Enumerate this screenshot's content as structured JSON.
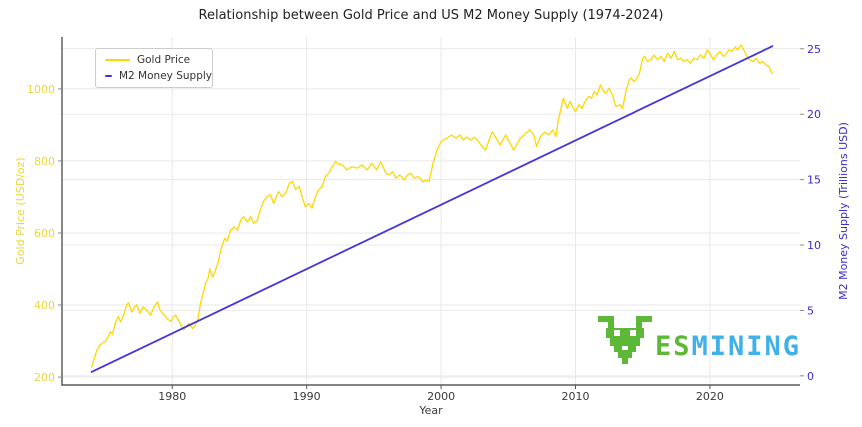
{
  "watermark": {
    "text_es": "ES",
    "text_mining": "MINING"
  },
  "chart_data": {
    "type": "line",
    "title": "Relationship between Gold Price and US M2 Money Supply (1974-2024)",
    "xlabel": "Year",
    "ylabel_left": "Gold Price (USD/oz)",
    "ylabel_right": "M2 Money Supply (Trillions USD)",
    "grid": true,
    "legend_position": "upper left",
    "colors": {
      "gold_line": "#FFD700",
      "gold_text": "#EDD53C",
      "m2_line": "#4634D9",
      "m2_text": "#3A2BCE",
      "grid": "#E9E9E9",
      "spine": "#3A3A3A",
      "tick_text": "#3A3A3A",
      "title_text": "#222222",
      "watermark_green": "#5CB835",
      "watermark_blue": "#41B0E8"
    },
    "axes": {
      "x": {
        "ticks": [
          1980,
          1990,
          2000,
          2010,
          2020
        ],
        "range": [
          1971.8,
          2026.7
        ]
      },
      "y_left": {
        "ticks": [
          200,
          400,
          600,
          800,
          1000
        ],
        "range": [
          178,
          1144
        ]
      },
      "y_right": {
        "ticks": [
          0,
          5,
          10,
          15,
          20,
          25
        ],
        "range": [
          -0.7,
          25.9
        ]
      }
    },
    "series": [
      {
        "name": "Gold Price",
        "axis": "left",
        "color": "#FFD700",
        "width": 1.3,
        "points": [
          [
            1974.0,
            228
          ],
          [
            1974.2,
            252
          ],
          [
            1974.4,
            275
          ],
          [
            1974.6,
            288
          ],
          [
            1974.8,
            294
          ],
          [
            1975.0,
            298
          ],
          [
            1975.2,
            310
          ],
          [
            1975.4,
            326
          ],
          [
            1975.55,
            319
          ],
          [
            1975.8,
            354
          ],
          [
            1976.0,
            368
          ],
          [
            1976.15,
            353
          ],
          [
            1976.4,
            372
          ],
          [
            1976.6,
            400
          ],
          [
            1976.75,
            406
          ],
          [
            1977.0,
            381
          ],
          [
            1977.2,
            395
          ],
          [
            1977.35,
            400
          ],
          [
            1977.6,
            377
          ],
          [
            1977.85,
            395
          ],
          [
            1978.1,
            386
          ],
          [
            1978.4,
            372
          ],
          [
            1978.65,
            395
          ],
          [
            1978.9,
            409
          ],
          [
            1979.1,
            386
          ],
          [
            1979.4,
            372
          ],
          [
            1979.65,
            362
          ],
          [
            1979.9,
            354
          ],
          [
            1980.1,
            368
          ],
          [
            1980.25,
            372
          ],
          [
            1980.5,
            354
          ],
          [
            1980.7,
            340
          ],
          [
            1980.85,
            331
          ],
          [
            1981.1,
            344
          ],
          [
            1981.25,
            349
          ],
          [
            1981.5,
            335
          ],
          [
            1981.7,
            341
          ],
          [
            1981.9,
            360
          ],
          [
            1982.1,
            405
          ],
          [
            1982.3,
            432
          ],
          [
            1982.5,
            462
          ],
          [
            1982.65,
            472
          ],
          [
            1982.8,
            500
          ],
          [
            1983.0,
            478
          ],
          [
            1983.2,
            495
          ],
          [
            1983.4,
            516
          ],
          [
            1983.6,
            552
          ],
          [
            1983.9,
            585
          ],
          [
            1984.1,
            578
          ],
          [
            1984.35,
            608
          ],
          [
            1984.6,
            617
          ],
          [
            1984.85,
            608
          ],
          [
            1985.1,
            636
          ],
          [
            1985.3,
            645
          ],
          [
            1985.6,
            631
          ],
          [
            1985.85,
            645
          ],
          [
            1986.05,
            627
          ],
          [
            1986.3,
            632
          ],
          [
            1986.55,
            664
          ],
          [
            1986.8,
            688
          ],
          [
            1987.05,
            701
          ],
          [
            1987.3,
            706
          ],
          [
            1987.55,
            682
          ],
          [
            1987.9,
            715
          ],
          [
            1988.15,
            701
          ],
          [
            1988.45,
            710
          ],
          [
            1988.7,
            738
          ],
          [
            1988.95,
            743
          ],
          [
            1989.2,
            720
          ],
          [
            1989.45,
            729
          ],
          [
            1989.65,
            701
          ],
          [
            1989.9,
            673
          ],
          [
            1990.15,
            682
          ],
          [
            1990.4,
            669
          ],
          [
            1990.65,
            701
          ],
          [
            1990.9,
            720
          ],
          [
            1991.15,
            729
          ],
          [
            1991.4,
            757
          ],
          [
            1991.65,
            766
          ],
          [
            1991.9,
            784
          ],
          [
            1992.15,
            798
          ],
          [
            1992.4,
            791
          ],
          [
            1992.65,
            789
          ],
          [
            1993.0,
            775
          ],
          [
            1993.35,
            784
          ],
          [
            1993.75,
            780
          ],
          [
            1994.1,
            789
          ],
          [
            1994.5,
            775
          ],
          [
            1994.85,
            793
          ],
          [
            1995.2,
            775
          ],
          [
            1995.5,
            798
          ],
          [
            1995.9,
            766
          ],
          [
            1996.1,
            761
          ],
          [
            1996.4,
            770
          ],
          [
            1996.65,
            752
          ],
          [
            1996.9,
            761
          ],
          [
            1997.1,
            756
          ],
          [
            1997.25,
            747
          ],
          [
            1997.5,
            761
          ],
          [
            1997.75,
            766
          ],
          [
            1998.0,
            752
          ],
          [
            1998.3,
            757
          ],
          [
            1998.65,
            742
          ],
          [
            1998.9,
            747
          ],
          [
            1999.1,
            742
          ],
          [
            1999.4,
            793
          ],
          [
            1999.7,
            830
          ],
          [
            2000.0,
            854
          ],
          [
            2000.4,
            863
          ],
          [
            2000.8,
            872
          ],
          [
            2001.1,
            863
          ],
          [
            2001.4,
            872
          ],
          [
            2001.65,
            858
          ],
          [
            2001.9,
            866
          ],
          [
            2002.2,
            858
          ],
          [
            2002.5,
            866
          ],
          [
            2002.8,
            852
          ],
          [
            2003.0,
            843
          ],
          [
            2003.3,
            830
          ],
          [
            2003.8,
            881
          ],
          [
            2004.4,
            844
          ],
          [
            2004.8,
            872
          ],
          [
            2005.4,
            830
          ],
          [
            2005.9,
            863
          ],
          [
            2006.6,
            886
          ],
          [
            2006.9,
            872
          ],
          [
            2007.1,
            840
          ],
          [
            2007.4,
            868
          ],
          [
            2007.7,
            880
          ],
          [
            2008.0,
            872
          ],
          [
            2008.3,
            886
          ],
          [
            2008.55,
            868
          ],
          [
            2008.7,
            909
          ],
          [
            2009.1,
            974
          ],
          [
            2009.4,
            946
          ],
          [
            2009.6,
            965
          ],
          [
            2009.9,
            942
          ],
          [
            2010.0,
            937
          ],
          [
            2010.25,
            956
          ],
          [
            2010.5,
            946
          ],
          [
            2010.7,
            965
          ],
          [
            2011.0,
            979
          ],
          [
            2011.2,
            974
          ],
          [
            2011.4,
            993
          ],
          [
            2011.6,
            983
          ],
          [
            2011.85,
            1011
          ],
          [
            2012.1,
            993
          ],
          [
            2012.25,
            988
          ],
          [
            2012.5,
            1002
          ],
          [
            2012.75,
            983
          ],
          [
            2013.0,
            951
          ],
          [
            2013.3,
            956
          ],
          [
            2013.5,
            946
          ],
          [
            2013.75,
            993
          ],
          [
            2014.0,
            1025
          ],
          [
            2014.15,
            1030
          ],
          [
            2014.35,
            1020
          ],
          [
            2014.5,
            1025
          ],
          [
            2014.75,
            1043
          ],
          [
            2015.0,
            1085
          ],
          [
            2015.15,
            1090
          ],
          [
            2015.35,
            1076
          ],
          [
            2015.6,
            1081
          ],
          [
            2015.85,
            1094
          ],
          [
            2016.1,
            1081
          ],
          [
            2016.35,
            1090
          ],
          [
            2016.6,
            1076
          ],
          [
            2016.85,
            1099
          ],
          [
            2017.1,
            1085
          ],
          [
            2017.35,
            1104
          ],
          [
            2017.6,
            1081
          ],
          [
            2017.85,
            1085
          ],
          [
            2018.05,
            1076
          ],
          [
            2018.3,
            1081
          ],
          [
            2018.55,
            1071
          ],
          [
            2018.8,
            1085
          ],
          [
            2019.05,
            1081
          ],
          [
            2019.3,
            1094
          ],
          [
            2019.55,
            1085
          ],
          [
            2019.8,
            1108
          ],
          [
            2020.0,
            1099
          ],
          [
            2020.25,
            1081
          ],
          [
            2020.5,
            1094
          ],
          [
            2020.75,
            1104
          ],
          [
            2021.0,
            1090
          ],
          [
            2021.15,
            1094
          ],
          [
            2021.4,
            1108
          ],
          [
            2021.65,
            1104
          ],
          [
            2021.9,
            1117
          ],
          [
            2022.05,
            1108
          ],
          [
            2022.3,
            1122
          ],
          [
            2022.45,
            1113
          ],
          [
            2022.7,
            1094
          ],
          [
            2022.95,
            1081
          ],
          [
            2023.2,
            1076
          ],
          [
            2023.45,
            1085
          ],
          [
            2023.7,
            1071
          ],
          [
            2023.95,
            1076
          ],
          [
            2024.15,
            1067
          ],
          [
            2024.4,
            1062
          ],
          [
            2024.55,
            1048
          ],
          [
            2024.65,
            1043
          ]
        ]
      },
      {
        "name": "M2 Money Supply",
        "axis": "right",
        "color": "#4634D9",
        "width": 1.8,
        "points": [
          [
            1974.0,
            0.3
          ],
          [
            2024.65,
            25.2
          ]
        ]
      }
    ]
  }
}
